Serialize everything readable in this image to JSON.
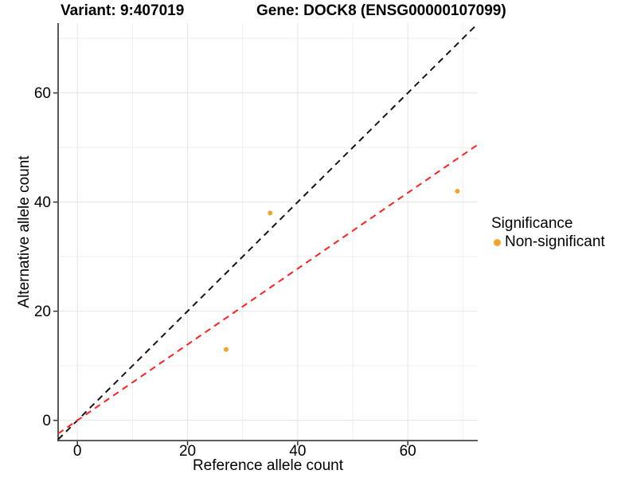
{
  "chart_data": {
    "type": "scatter",
    "title_left": "Variant: 9:407019",
    "title_right": "Gene: DOCK8 (ENSG00000107099)",
    "xlabel": "Reference allele count",
    "ylabel": "Alternative allele count",
    "x_ticks": [
      0,
      20,
      40,
      60
    ],
    "y_ticks": [
      0,
      20,
      40,
      60
    ],
    "xlim": [
      -3.5,
      72.7
    ],
    "ylim": [
      -3.7,
      72.8
    ],
    "grid": {
      "minor_step": 10,
      "major_step": 20,
      "max": 70
    },
    "points": [
      {
        "x": 27,
        "y": 13
      },
      {
        "x": 35,
        "y": 38
      },
      {
        "x": 69,
        "y": 42
      }
    ],
    "point_color": "#F8A12C",
    "point_radius": 3,
    "lines": [
      {
        "name": "identity-line",
        "slope": 1.0,
        "intercept": 0,
        "color": "#151515",
        "dash": [
          8,
          6
        ]
      },
      {
        "name": "regression-line",
        "slope": 0.695,
        "intercept": 0,
        "color": "#FF2020",
        "dash": [
          8,
          6
        ]
      }
    ],
    "legend": {
      "title": "Significance",
      "position": "right",
      "items": [
        {
          "label": "Non-significant",
          "color": "#F8A12C"
        }
      ]
    },
    "colors": {
      "background": "#ffffff",
      "grid_major": "#e4e4e4",
      "grid_minor": "#eeeeee",
      "axis_line": "#464646",
      "tick": "#333333",
      "text": "#000000"
    }
  }
}
